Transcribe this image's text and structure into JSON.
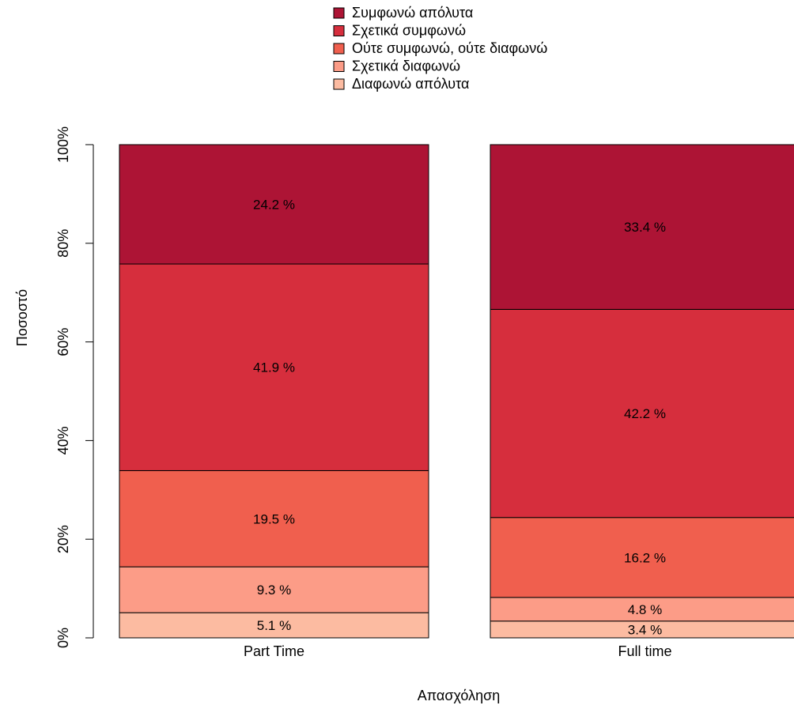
{
  "chart_data": {
    "type": "bar",
    "stacked": true,
    "xlabel": "Απασχόληση",
    "ylabel": "Ποσοστό",
    "ylim": [
      0,
      100
    ],
    "yticks": [
      "0%",
      "20%",
      "40%",
      "60%",
      "80%",
      "100%"
    ],
    "legend_position": "top",
    "categories": [
      "Part Time",
      "Full time"
    ],
    "series": [
      {
        "name": "Διαφωνώ απόλυτα",
        "color": "#FCBBA1",
        "values": [
          5.1,
          3.4
        ],
        "labels": [
          "5.1 %",
          "3.4 %"
        ]
      },
      {
        "name": "Σχετικά διαφωνώ",
        "color": "#FC9C87",
        "values": [
          9.3,
          4.8
        ],
        "labels": [
          "9.3 %",
          "4.8 %"
        ]
      },
      {
        "name": "Ούτε συμφωνώ, ούτε διαφωνώ",
        "color": "#F05F4E",
        "values": [
          19.5,
          16.2
        ],
        "labels": [
          "19.5 %",
          "16.2 %"
        ]
      },
      {
        "name": "Σχετικά συμφωνώ",
        "color": "#D62E3D",
        "values": [
          41.9,
          42.2
        ],
        "labels": [
          "41.9 %",
          "42.2 %"
        ]
      },
      {
        "name": "Συμφωνώ απόλυτα",
        "color": "#AD1435",
        "values": [
          24.2,
          33.4
        ],
        "labels": [
          "24.2 %",
          "33.4 %"
        ]
      }
    ],
    "legend_order": [
      "Συμφωνώ απόλυτα",
      "Σχετικά συμφωνώ",
      "Ούτε συμφωνώ, ούτε διαφωνώ",
      "Σχετικά διαφωνώ",
      "Διαφωνώ απόλυτα"
    ]
  }
}
